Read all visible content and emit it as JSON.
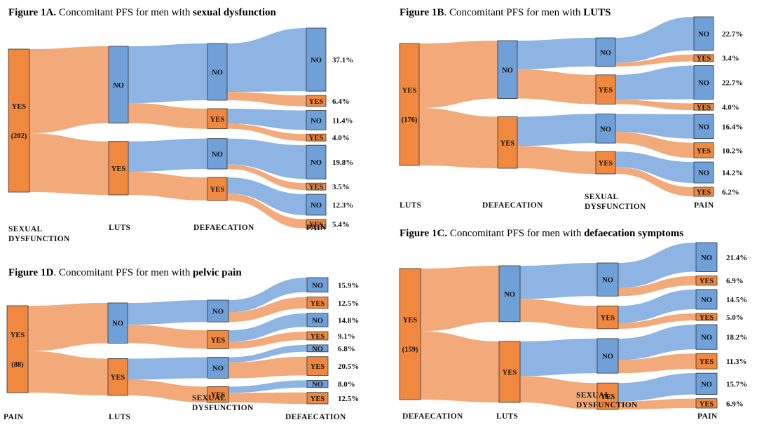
{
  "colors": {
    "no": "#6fa0d8",
    "no_link": "#8db4e2",
    "yes": "#f0893f",
    "yes_link": "#f2aa7a",
    "stroke": "#333333"
  },
  "chart_data": [
    {
      "type": "sankey",
      "title_bold_prefix": "Figure 1A.",
      "title_text": " Concomitant PFS for men with ",
      "title_bold_suffix": "sexual dysfunction",
      "columns": [
        "SEXUAL DYSFUNCTION",
        "LUTS",
        "DEFAECATION",
        "PAIN"
      ],
      "columns_lines": [
        [
          "SEXUAL",
          "DYSFUNCTION"
        ],
        [
          "LUTS"
        ],
        [
          "DEFAECATION"
        ],
        [
          "PAIN"
        ]
      ],
      "root": {
        "label": "YES",
        "n": "(202)"
      },
      "leaves": [
        {
          "path": [
            "NO",
            "NO",
            "NO"
          ],
          "label": "NO",
          "percent": 37.1,
          "text": "37.1%"
        },
        {
          "path": [
            "NO",
            "NO",
            "YES"
          ],
          "label": "YES",
          "percent": 6.4,
          "text": "6.4%"
        },
        {
          "path": [
            "NO",
            "YES",
            "NO"
          ],
          "label": "NO",
          "percent": 11.4,
          "text": "11.4%"
        },
        {
          "path": [
            "NO",
            "YES",
            "YES"
          ],
          "label": "YES",
          "percent": 4.0,
          "text": "4.0%"
        },
        {
          "path": [
            "YES",
            "NO",
            "NO"
          ],
          "label": "NO",
          "percent": 19.8,
          "text": "19.8%"
        },
        {
          "path": [
            "YES",
            "NO",
            "YES"
          ],
          "label": "YES",
          "percent": 3.5,
          "text": "3.5%"
        },
        {
          "path": [
            "YES",
            "YES",
            "NO"
          ],
          "label": "NO",
          "percent": 12.3,
          "text": "12.3%"
        },
        {
          "path": [
            "YES",
            "YES",
            "YES"
          ],
          "label": "YES",
          "percent": 5.4,
          "text": "5.4%"
        }
      ]
    },
    {
      "type": "sankey",
      "title_bold_prefix": "Figure 1B",
      "title_text": ". Concomitant PFS for men with ",
      "title_bold_suffix": "LUTS",
      "columns": [
        "LUTS",
        "DEFAECATION",
        "SEXUAL DYSFUNCTION",
        "PAIN"
      ],
      "columns_lines": [
        [
          "LUTS"
        ],
        [
          "DEFAECATION"
        ],
        [
          "SEXUAL",
          "DYSFUNCTION"
        ],
        [
          "PAIN"
        ]
      ],
      "root": {
        "label": "YES",
        "n": "(176)"
      },
      "leaves": [
        {
          "path": [
            "NO",
            "NO",
            "NO"
          ],
          "label": "NO",
          "percent": 22.7,
          "text": "22.7%"
        },
        {
          "path": [
            "NO",
            "NO",
            "YES"
          ],
          "label": "YES",
          "percent": 3.4,
          "text": "3.4%"
        },
        {
          "path": [
            "NO",
            "YES",
            "NO"
          ],
          "label": "NO",
          "percent": 22.7,
          "text": "22.7%"
        },
        {
          "path": [
            "NO",
            "YES",
            "YES"
          ],
          "label": "YES",
          "percent": 4.0,
          "text": "4.0%"
        },
        {
          "path": [
            "YES",
            "NO",
            "NO"
          ],
          "label": "NO",
          "percent": 16.4,
          "text": "16.4%"
        },
        {
          "path": [
            "YES",
            "NO",
            "YES"
          ],
          "label": "YES",
          "percent": 10.2,
          "text": "10.2%"
        },
        {
          "path": [
            "YES",
            "YES",
            "NO"
          ],
          "label": "NO",
          "percent": 14.2,
          "text": "14.2%"
        },
        {
          "path": [
            "YES",
            "YES",
            "YES"
          ],
          "label": "YES",
          "percent": 6.2,
          "text": "6.2%"
        }
      ]
    },
    {
      "type": "sankey",
      "title_bold_prefix": "Figure 1C.",
      "title_text": " Concomitant PFS for men with ",
      "title_bold_suffix": "defaecation symptoms",
      "columns": [
        "DEFAECATION",
        "LUTS",
        "SEXUAL DYSFUNCTION",
        "PAIN"
      ],
      "columns_lines": [
        [
          "DEFAECATION"
        ],
        [
          "LUTS"
        ],
        [
          "SEXUAL",
          "DYSFUNCTION"
        ],
        [
          "PAIN"
        ]
      ],
      "root": {
        "label": "YES",
        "n": "(159)"
      },
      "leaves": [
        {
          "path": [
            "NO",
            "NO",
            "NO"
          ],
          "label": "NO",
          "percent": 21.4,
          "text": "21.4%"
        },
        {
          "path": [
            "NO",
            "NO",
            "YES"
          ],
          "label": "YES",
          "percent": 6.9,
          "text": "6.9%"
        },
        {
          "path": [
            "NO",
            "YES",
            "NO"
          ],
          "label": "NO",
          "percent": 14.5,
          "text": "14.5%"
        },
        {
          "path": [
            "NO",
            "YES",
            "YES"
          ],
          "label": "YES",
          "percent": 5.0,
          "text": "5.0%"
        },
        {
          "path": [
            "YES",
            "NO",
            "NO"
          ],
          "label": "NO",
          "percent": 18.2,
          "text": "18.2%"
        },
        {
          "path": [
            "YES",
            "NO",
            "YES"
          ],
          "label": "YES",
          "percent": 11.3,
          "text": "11.3%"
        },
        {
          "path": [
            "YES",
            "YES",
            "NO"
          ],
          "label": "NO",
          "percent": 15.7,
          "text": "15.7%"
        },
        {
          "path": [
            "YES",
            "YES",
            "YES"
          ],
          "label": "YES",
          "percent": 6.9,
          "text": "6.9%"
        }
      ]
    },
    {
      "type": "sankey",
      "title_bold_prefix": "Figure 1D",
      "title_text": ". Concomitant PFS for men with ",
      "title_bold_suffix": "pelvic pain",
      "columns": [
        "PAIN",
        "LUTS",
        "SEXUAL DYSFUNCTION",
        "DEFAECATION"
      ],
      "columns_lines": [
        [
          "PAIN"
        ],
        [
          "LUTS"
        ],
        [
          "SEXUAL",
          "DYSFUNCTION"
        ],
        [
          "DEFAECATION"
        ]
      ],
      "root": {
        "label": "YES",
        "n": "(88)"
      },
      "leaves": [
        {
          "path": [
            "NO",
            "NO",
            "NO"
          ],
          "label": "NO",
          "percent": 15.9,
          "text": "15.9%"
        },
        {
          "path": [
            "NO",
            "NO",
            "YES"
          ],
          "label": "YES",
          "percent": 12.5,
          "text": "12.5%"
        },
        {
          "path": [
            "NO",
            "YES",
            "NO"
          ],
          "label": "NO",
          "percent": 14.8,
          "text": "14.8%"
        },
        {
          "path": [
            "NO",
            "YES",
            "YES"
          ],
          "label": "YES",
          "percent": 9.1,
          "text": "9.1%"
        },
        {
          "path": [
            "YES",
            "NO",
            "NO"
          ],
          "label": "NO",
          "percent": 6.8,
          "text": "6.8%"
        },
        {
          "path": [
            "YES",
            "NO",
            "YES"
          ],
          "label": "YES",
          "percent": 20.5,
          "text": "20.5%"
        },
        {
          "path": [
            "YES",
            "YES",
            "NO"
          ],
          "label": "NO",
          "percent": 8.0,
          "text": "8.0%"
        },
        {
          "path": [
            "YES",
            "YES",
            "YES"
          ],
          "label": "YES",
          "percent": 12.5,
          "text": "12.5%"
        }
      ]
    }
  ]
}
